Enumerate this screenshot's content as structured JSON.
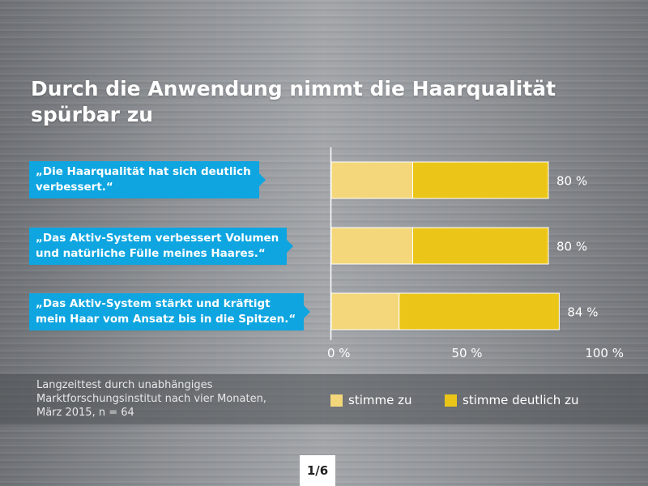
{
  "colors": {
    "agree": "#f3d77a",
    "strongly_agree": "#ebc619",
    "label_bg": "#0ea5e0"
  },
  "chart_data": {
    "type": "bar",
    "orientation": "horizontal",
    "stacked": true,
    "title": "Durch die Anwendung nimmt die Haarqualität spürbar zu",
    "categories": [
      "„Die Haarqualität hat sich deutlich verbessert.“",
      "„Das Aktiv-System verbessert Volumen und natürliche Fülle meines Haares.“",
      "„Das Aktiv-System stärkt und kräftigt mein Haar vom Ansatz bis in die Spitzen.“"
    ],
    "category_lines": [
      [
        "„Die Haarqualität hat sich deutlich",
        "verbessert.“"
      ],
      [
        "„Das Aktiv-System verbessert Volumen",
        "und natürliche Fülle meines Haares.“"
      ],
      [
        "„Das Aktiv-System stärkt und kräftigt",
        "mein Haar vom Ansatz bis in die Spitzen.“"
      ]
    ],
    "series": [
      {
        "name": "stimme zu",
        "values": [
          30,
          30,
          25
        ]
      },
      {
        "name": "stimme deutlich zu",
        "values": [
          50,
          50,
          59
        ]
      }
    ],
    "total_labels": [
      "80 %",
      "80 %",
      "84 %"
    ],
    "xlim": [
      0,
      100
    ],
    "ticks": [
      0,
      50,
      100
    ],
    "tick_labels": [
      "0 %",
      "50 %",
      "100 %"
    ],
    "legend": [
      "stimme zu",
      "stimme deutlich zu"
    ],
    "legend_position": "bottom"
  },
  "footnote": [
    "Langzeittest durch unabhängiges",
    "Marktforschungsinstitut nach vier Monaten,",
    "März 2015, n = 64"
  ],
  "page_indicator": "1/6"
}
